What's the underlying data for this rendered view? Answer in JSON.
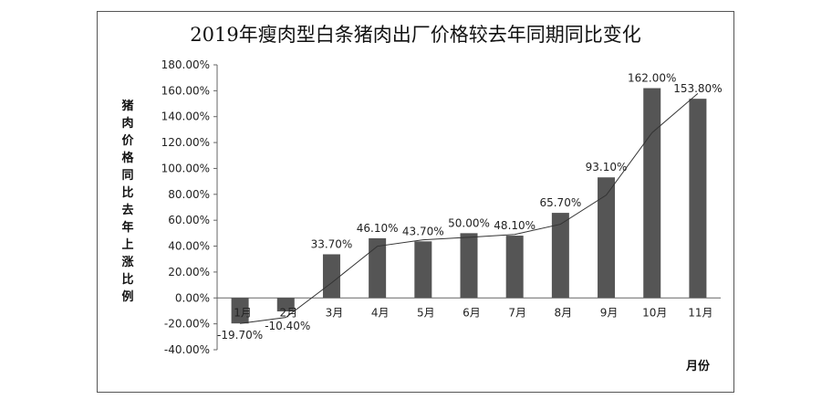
{
  "chart_data": {
    "type": "bar",
    "title": "2019年瘦肉型白条猪肉出厂价格较去年同期同比变化",
    "xlabel": "月份",
    "ylabel": "猪肉价格同比去年上涨比例",
    "categories": [
      "1月",
      "2月",
      "3月",
      "4月",
      "5月",
      "6月",
      "7月",
      "8月",
      "9月",
      "10月",
      "11月"
    ],
    "values": [
      -19.7,
      -10.4,
      33.7,
      46.1,
      43.7,
      50.0,
      48.1,
      65.7,
      93.1,
      162.0,
      153.8
    ],
    "data_labels": [
      "-19.70%",
      "-10.40%",
      "33.70%",
      "46.10%",
      "43.70%",
      "50.00%",
      "48.10%",
      "65.70%",
      "93.10%",
      "162.00%",
      "153.80%"
    ],
    "ylim": [
      -40,
      180
    ],
    "yticks": [
      -40,
      -20,
      0,
      20,
      40,
      60,
      80,
      100,
      120,
      140,
      160,
      180
    ],
    "ytick_labels": [
      "-40.00%",
      "-20.00%",
      "0.00%",
      "20.00%",
      "40.00%",
      "60.00%",
      "80.00%",
      "100.00%",
      "120.00%",
      "140.00%",
      "160.00%",
      "180.00%"
    ],
    "trendline": true,
    "legend": "none",
    "bar_color": "#555555"
  }
}
